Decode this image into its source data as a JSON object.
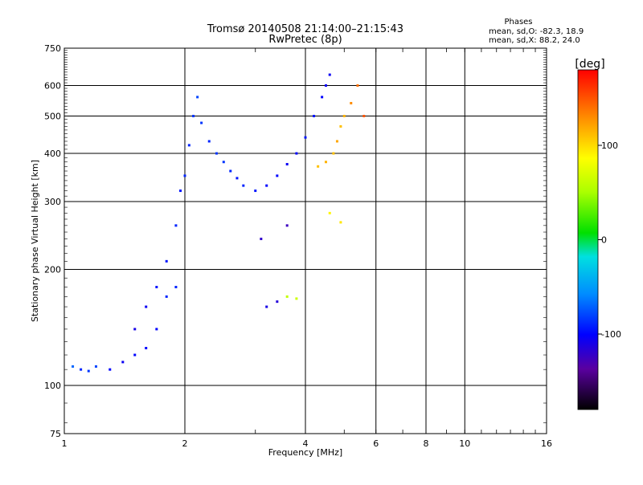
{
  "chart_data": {
    "type": "scatter",
    "title": "Tromsø 20140508 21:14:00–21:15:43",
    "subtitle": "RwPretec (8p)",
    "xlabel": "Frequency [MHz]",
    "ylabel": "Stationary phase Virtual Height [km]",
    "x_scale": "log",
    "y_scale": "log",
    "xlim": [
      1,
      16
    ],
    "ylim": [
      75,
      750
    ],
    "x_ticks": [
      1,
      2,
      4,
      6,
      8,
      10,
      16
    ],
    "x_tick_labels": [
      "1",
      "2",
      "4",
      "6",
      "8",
      "10",
      "16"
    ],
    "y_ticks": [
      75,
      100,
      200,
      300,
      400,
      500,
      600,
      750
    ],
    "y_tick_labels": [
      "75",
      "100",
      "200",
      "300",
      "400",
      "500",
      "600",
      "750"
    ],
    "x_grid": [
      2,
      4,
      6,
      8,
      10
    ],
    "y_grid": [
      100,
      200,
      300,
      400,
      500,
      600
    ],
    "grid": true,
    "stats": {
      "heading": "Phases",
      "line1": "mean, sd,O: -82.3, 18.9",
      "line2": "mean, sd,X: 88.2, 24.0"
    },
    "colorbar": {
      "label": "[deg]",
      "range": [
        -180,
        180
      ],
      "ticks": [
        100,
        0,
        -100
      ],
      "tick_labels": [
        "100",
        "0",
        "-100"
      ]
    },
    "series": [
      {
        "mode": "O",
        "points": [
          {
            "x": 1.05,
            "y": 112,
            "c": -70
          },
          {
            "x": 1.1,
            "y": 110,
            "c": -90
          },
          {
            "x": 1.15,
            "y": 109,
            "c": -85
          },
          {
            "x": 1.2,
            "y": 112,
            "c": -80
          },
          {
            "x": 1.3,
            "y": 110,
            "c": -100
          },
          {
            "x": 1.4,
            "y": 115,
            "c": -105
          },
          {
            "x": 1.5,
            "y": 120,
            "c": -100
          },
          {
            "x": 1.5,
            "y": 140,
            "c": -110
          },
          {
            "x": 1.6,
            "y": 125,
            "c": -100
          },
          {
            "x": 1.6,
            "y": 160,
            "c": -105
          },
          {
            "x": 1.7,
            "y": 140,
            "c": -100
          },
          {
            "x": 1.7,
            "y": 180,
            "c": -95
          },
          {
            "x": 1.8,
            "y": 170,
            "c": -90
          },
          {
            "x": 1.8,
            "y": 210,
            "c": -95
          },
          {
            "x": 1.9,
            "y": 180,
            "c": -90
          },
          {
            "x": 1.9,
            "y": 260,
            "c": -90
          },
          {
            "x": 1.95,
            "y": 320,
            "c": -95
          },
          {
            "x": 2.0,
            "y": 350,
            "c": -90
          },
          {
            "x": 2.05,
            "y": 420,
            "c": -90
          },
          {
            "x": 2.1,
            "y": 500,
            "c": -85
          },
          {
            "x": 2.15,
            "y": 560,
            "c": -80
          },
          {
            "x": 2.2,
            "y": 480,
            "c": -85
          },
          {
            "x": 2.3,
            "y": 430,
            "c": -90
          },
          {
            "x": 2.4,
            "y": 400,
            "c": -85
          },
          {
            "x": 2.5,
            "y": 380,
            "c": -85
          },
          {
            "x": 2.6,
            "y": 360,
            "c": -90
          },
          {
            "x": 2.7,
            "y": 345,
            "c": -95
          },
          {
            "x": 2.8,
            "y": 330,
            "c": -90
          },
          {
            "x": 3.0,
            "y": 320,
            "c": -95
          },
          {
            "x": 3.2,
            "y": 330,
            "c": -100
          },
          {
            "x": 3.4,
            "y": 350,
            "c": -100
          },
          {
            "x": 3.6,
            "y": 375,
            "c": -105
          },
          {
            "x": 3.8,
            "y": 400,
            "c": -100
          },
          {
            "x": 4.0,
            "y": 440,
            "c": -95
          },
          {
            "x": 4.2,
            "y": 500,
            "c": -95
          },
          {
            "x": 4.4,
            "y": 560,
            "c": -100
          },
          {
            "x": 4.5,
            "y": 600,
            "c": -105
          },
          {
            "x": 4.6,
            "y": 640,
            "c": -105
          },
          {
            "x": 3.2,
            "y": 160,
            "c": -110
          },
          {
            "x": 3.4,
            "y": 165,
            "c": -115
          },
          {
            "x": 3.1,
            "y": 240,
            "c": -120
          },
          {
            "x": 3.6,
            "y": 260,
            "c": -125
          }
        ]
      },
      {
        "mode": "X",
        "points": [
          {
            "x": 4.3,
            "y": 370,
            "c": 110
          },
          {
            "x": 4.5,
            "y": 380,
            "c": 115
          },
          {
            "x": 4.7,
            "y": 400,
            "c": 110
          },
          {
            "x": 4.8,
            "y": 430,
            "c": 120
          },
          {
            "x": 4.9,
            "y": 470,
            "c": 110
          },
          {
            "x": 5.0,
            "y": 500,
            "c": 115
          },
          {
            "x": 5.2,
            "y": 540,
            "c": 130
          },
          {
            "x": 5.4,
            "y": 600,
            "c": 140
          },
          {
            "x": 5.6,
            "y": 500,
            "c": 150
          },
          {
            "x": 4.6,
            "y": 280,
            "c": 90
          },
          {
            "x": 4.9,
            "y": 265,
            "c": 95
          },
          {
            "x": 3.6,
            "y": 170,
            "c": 60
          },
          {
            "x": 3.8,
            "y": 168,
            "c": 65
          }
        ]
      }
    ]
  }
}
